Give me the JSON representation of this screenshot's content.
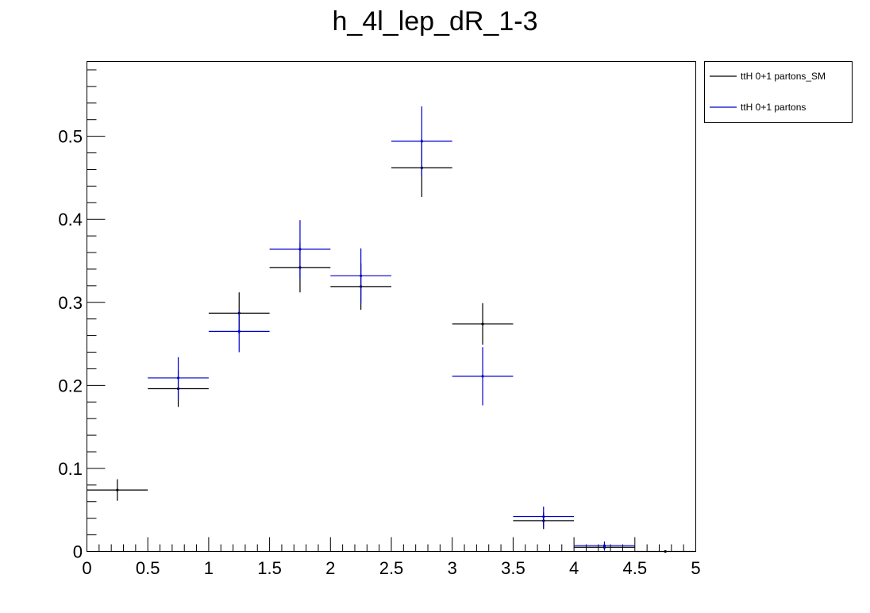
{
  "chart_data": {
    "type": "scatter",
    "style": "histogram-errorbars",
    "title": "h_4l_lep_dR_1-3",
    "xlabel": "",
    "ylabel": "",
    "xlim": [
      0,
      5
    ],
    "ylim": [
      0,
      0.59
    ],
    "grid": false,
    "legend_position": "top-right",
    "bin_width": 0.5,
    "x_ticks": [
      {
        "value": 0,
        "label": "0"
      },
      {
        "value": 0.5,
        "label": "0.5"
      },
      {
        "value": 1,
        "label": "1"
      },
      {
        "value": 1.5,
        "label": "1.5"
      },
      {
        "value": 2,
        "label": "2"
      },
      {
        "value": 2.5,
        "label": "2.5"
      },
      {
        "value": 3,
        "label": "3"
      },
      {
        "value": 3.5,
        "label": "3.5"
      },
      {
        "value": 4,
        "label": "4"
      },
      {
        "value": 4.5,
        "label": "4.5"
      },
      {
        "value": 5,
        "label": "5"
      }
    ],
    "y_ticks": [
      {
        "value": 0,
        "label": "0"
      },
      {
        "value": 0.1,
        "label": "0.1"
      },
      {
        "value": 0.2,
        "label": "0.2"
      },
      {
        "value": 0.3,
        "label": "0.3"
      },
      {
        "value": 0.4,
        "label": "0.4"
      },
      {
        "value": 0.5,
        "label": "0.5"
      }
    ],
    "series": [
      {
        "name": "ttH 0+1 partons_SM",
        "color": "#000000",
        "x": [
          0.25,
          0.75,
          1.25,
          1.75,
          2.25,
          2.75,
          3.25,
          3.75,
          4.25,
          4.75
        ],
        "y": [
          0.074,
          0.196,
          0.287,
          0.342,
          0.319,
          0.462,
          0.274,
          0.037,
          0.005,
          0.0
        ],
        "err": [
          0.013,
          0.022,
          0.025,
          0.03,
          0.028,
          0.035,
          0.025,
          0.01,
          0.004,
          0.0
        ]
      },
      {
        "name": "ttH 0+1 partons",
        "color": "#0000cc",
        "x": [
          0.75,
          1.25,
          1.75,
          2.25,
          2.75,
          3.25,
          3.75,
          4.25
        ],
        "y": [
          0.209,
          0.265,
          0.364,
          0.332,
          0.494,
          0.211,
          0.042,
          0.007
        ],
        "err": [
          0.025,
          0.025,
          0.035,
          0.033,
          0.042,
          0.035,
          0.012,
          0.005
        ]
      }
    ]
  }
}
